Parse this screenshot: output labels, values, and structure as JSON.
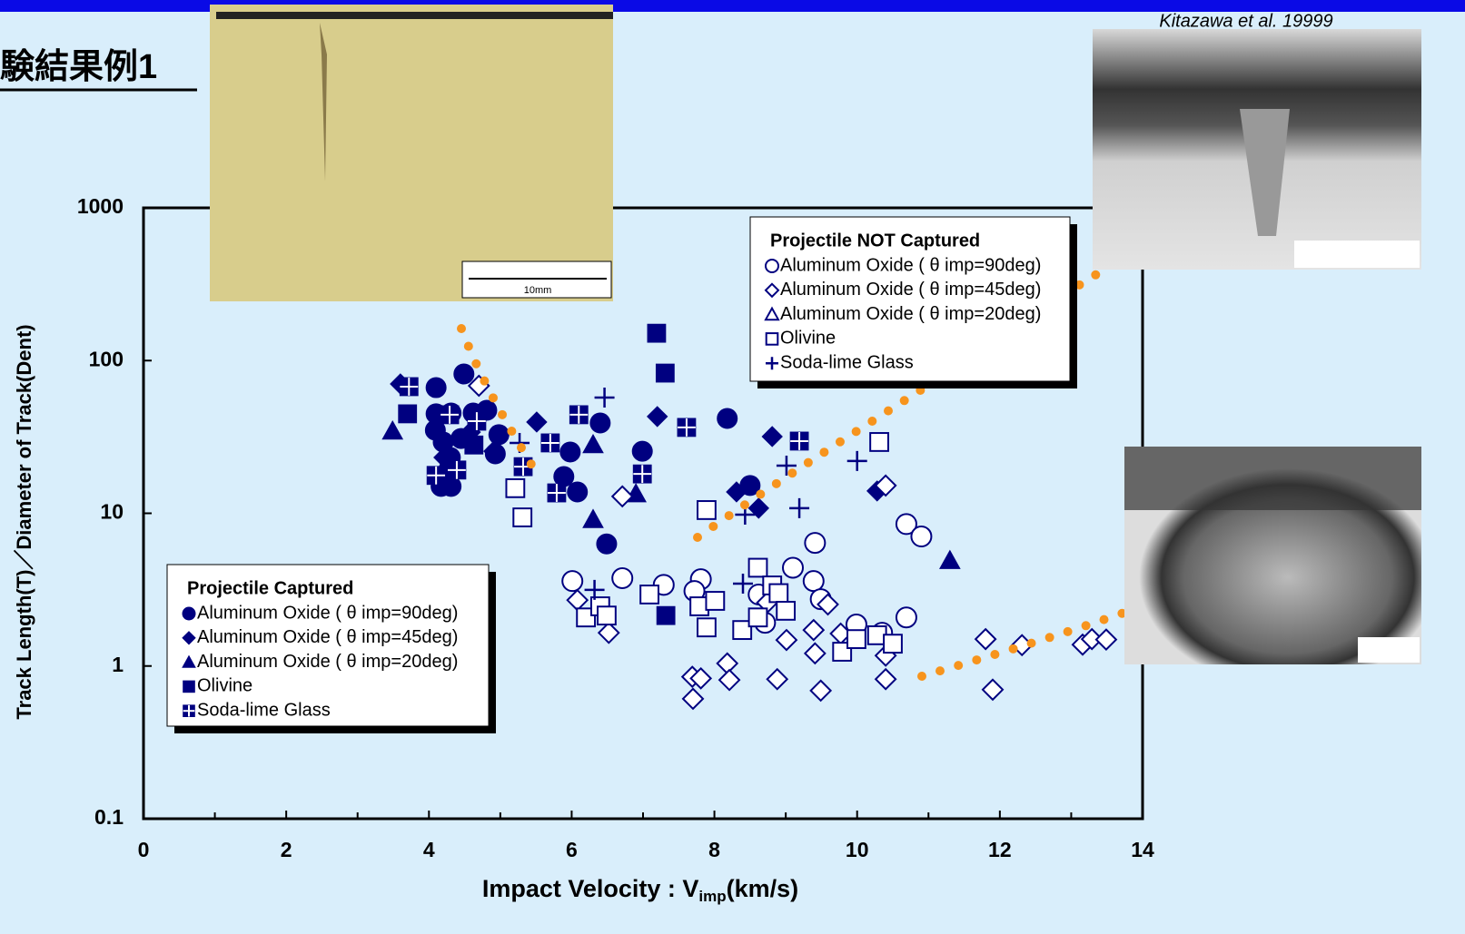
{
  "title": "験結果例1",
  "citation": "Kitazawa et al. 19999",
  "photo_scale": "10mm",
  "chart_data": {
    "type": "scatter",
    "ylabel": "Track Length(T)／Diameter of Track(Dent)",
    "xlabel": {
      "text": "Impact Velocity : V",
      "sub": "imp",
      "unit": "(km/s)"
    },
    "xlim": [
      0,
      14
    ],
    "xticks": [
      0,
      2,
      4,
      6,
      8,
      10,
      12,
      14
    ],
    "xminorticks": [
      1,
      3,
      5,
      7,
      9,
      11,
      13
    ],
    "ylim": [
      0.1,
      1000
    ],
    "yticks": [
      0.1,
      1,
      10,
      100,
      1000
    ],
    "yscale": "log",
    "groups": [
      {
        "title": "Projectile Captured",
        "series": [
          {
            "name": "Aluminum Oxide ( θ imp=90deg)",
            "marker": "circle",
            "filled": true,
            "color": "#000080",
            "x": [
              4.49,
              4.1,
              4.1,
              4.31,
              4.62,
              4.81,
              4.09,
              4.2,
              4.45,
              4.98,
              4.3,
              4.28,
              4.31,
              4.93,
              6.4,
              5.98,
              5.89,
              6.08,
              6.49,
              6.99,
              8.18,
              8.5,
              4.17
            ],
            "values": [
              81.7,
              66.5,
              44.8,
              45.4,
              45.4,
              47.3,
              35,
              29.3,
              30.9,
              32.7,
              23.2,
              19.4,
              15,
              24.5,
              39,
              25.2,
              17.4,
              13.8,
              6.3,
              25.5,
              41.8,
              15.2,
              15
            ]
          },
          {
            "name": "Aluminum Oxide ( θ imp=45deg)",
            "marker": "diamond",
            "filled": true,
            "color": "#000080",
            "x": [
              3.6,
              5.51,
              7.2,
              8.81,
              8.31,
              8.62,
              10.28,
              4.91,
              4.21,
              4.58
            ],
            "values": [
              70.3,
              39.6,
              43,
              31.8,
              13.8,
              10.8,
              14,
              25.5,
              23.2,
              34
            ]
          },
          {
            "name": "Aluminum Oxide ( θ imp=20deg)",
            "marker": "triangle",
            "filled": true,
            "color": "#000080",
            "x": [
              3.49,
              6.3,
              6.9,
              6.3,
              11.3
            ],
            "values": [
              34.5,
              28.1,
              13.4,
              9.1,
              4.9
            ]
          },
          {
            "name": "Olivine",
            "marker": "square",
            "filled": true,
            "color": "#000080",
            "x": [
              3.7,
              7.19,
              7.31,
              7.32,
              4.63
            ],
            "values": [
              44.8,
              151,
              82.8,
              2.14,
              28
            ]
          },
          {
            "name": "Soda-lime Glass",
            "marker": "glass",
            "filled": true,
            "color": "#000080",
            "x": [
              3.72,
              4.29,
              4.67,
              4.1,
              4.39,
              5.32,
              5.7,
              5.79,
              6.1,
              6.99,
              7.61,
              9.19
            ],
            "values": [
              67.5,
              44.2,
              40.1,
              17.7,
              19.2,
              20.2,
              28.9,
              13.6,
              44.2,
              18.1,
              36.5,
              29.7
            ]
          }
        ]
      },
      {
        "title": "Projectile NOT Captured",
        "series": [
          {
            "name": "Aluminum Oxide ( θ imp=90deg)",
            "marker": "circle",
            "filled": false,
            "color": "#000080",
            "x": [
              6.01,
              6.71,
              7.29,
              7.81,
              7.72,
              8.62,
              9.1,
              9.39,
              9.41,
              9.49,
              8.71,
              9.99,
              10.69,
              10.69,
              10.9,
              10.35
            ],
            "values": [
              3.6,
              3.76,
              3.4,
              3.7,
              3.1,
              2.94,
              4.4,
              3.6,
              6.4,
              2.74,
              1.92,
              1.87,
              2.08,
              8.5,
              7.05,
              1.65
            ]
          },
          {
            "name": "Aluminum Oxide ( θ imp=45deg)",
            "marker": "diamond",
            "filled": false,
            "color": "#000080",
            "x": [
              4.7,
              6.71,
              6.08,
              6.52,
              7.69,
              7.81,
              7.7,
              8.18,
              8.21,
              8.88,
              9.01,
              9.39,
              9.41,
              9.49,
              9.59,
              9.77,
              10.4,
              10.4,
              10.4,
              11.8,
              11.9,
              12.31,
              13.16,
              13.29,
              13.49,
              8.74
            ],
            "values": [
              68.4,
              12.9,
              2.7,
              1.65,
              0.85,
              0.83,
              0.61,
              1.04,
              0.81,
              0.82,
              1.48,
              1.72,
              1.21,
              0.69,
              2.53,
              1.63,
              1.17,
              0.82,
              15.2,
              1.5,
              0.7,
              1.37,
              1.38,
              1.5,
              1.49,
              2.6
            ]
          },
          {
            "name": "Aluminum Oxide ( θ imp=20deg)",
            "marker": "triangle",
            "filled": false,
            "color": "#000080",
            "x": [],
            "values": []
          },
          {
            "name": "Olivine",
            "marker": "square",
            "filled": false,
            "color": "#000080",
            "x": [
              5.21,
              5.31,
              10.31,
              7.89,
              8.61,
              7.09,
              7.79,
              8.01,
              7.89,
              8.39,
              8.61,
              8.81,
              8.9,
              9.0,
              6.2,
              6.4,
              6.49,
              9.79,
              9.99,
              10.28,
              10.5
            ],
            "values": [
              14.6,
              9.4,
              29.3,
              10.5,
              4.4,
              2.94,
              2.46,
              2.67,
              1.79,
              1.72,
              2.08,
              3.37,
              3.0,
              2.3,
              2.08,
              2.46,
              2.14,
              1.24,
              1.5,
              1.59,
              1.4
            ]
          },
          {
            "name": "Soda-lime Glass",
            "marker": "plus",
            "filled": false,
            "color": "#000080",
            "x": [
              6.46,
              9.01,
              10.0,
              9.19,
              8.43,
              6.32,
              8.4,
              5.27
            ],
            "values": [
              57.3,
              20.5,
              22,
              10.8,
              9.8,
              3.15,
              3.46,
              28.9
            ]
          }
        ]
      }
    ]
  }
}
